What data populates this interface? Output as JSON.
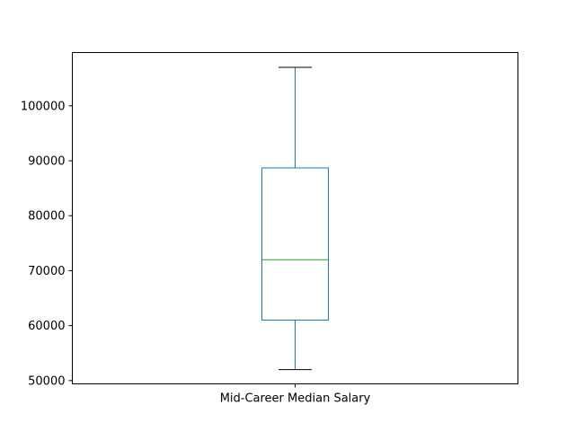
{
  "chart_data": {
    "type": "box",
    "categories": [
      "Mid-Career Median Salary"
    ],
    "boxes": [
      {
        "whisker_low": 52000,
        "q1": 61000,
        "median": 72000,
        "q3": 88700,
        "whisker_high": 107000
      }
    ],
    "y_ticks": [
      "50000",
      "60000",
      "70000",
      "80000",
      "90000",
      "100000"
    ],
    "ylim": [
      49400,
      109700
    ],
    "grid": false,
    "title": "",
    "xlabel": "",
    "ylabel": "",
    "colors": {
      "box": "#1f77b4",
      "median": "#2ca02c",
      "whisker_cap": "#000000",
      "axes": "#000000"
    }
  }
}
